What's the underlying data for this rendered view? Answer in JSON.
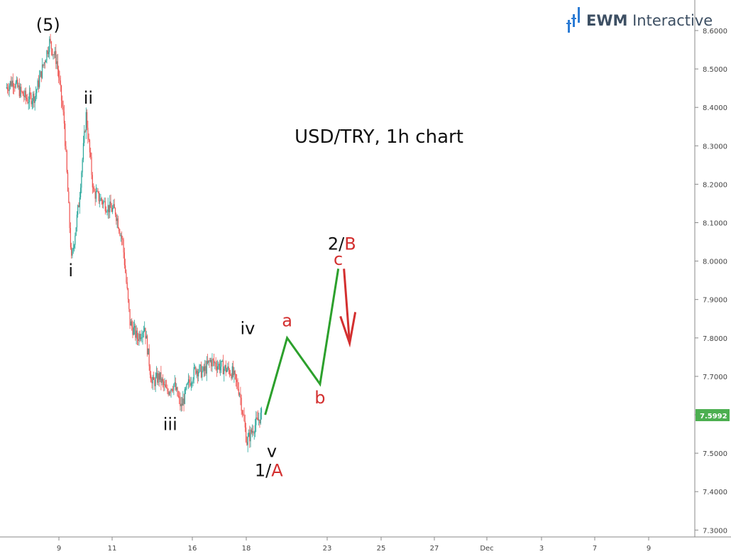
{
  "chart_data": {
    "type": "candlestick",
    "title": "USD/TRY, 1h chart",
    "ylim": [
      7.3,
      8.65
    ],
    "y_ticks": [
      "8.6000",
      "8.5000",
      "8.4000",
      "8.3000",
      "8.2000",
      "8.1000",
      "8.0000",
      "7.9000",
      "7.8000",
      "7.7000",
      "7.6000",
      "7.5000",
      "7.4000",
      "7.3000"
    ],
    "x_ticks": [
      "9",
      "11",
      "16",
      "18",
      "23",
      "25",
      "27",
      "Dec",
      "3",
      "7",
      "9"
    ],
    "current_price": "7.5992",
    "price_path": [
      {
        "t": 0,
        "v": 8.45
      },
      {
        "t": 1,
        "v": 8.47
      },
      {
        "t": 2,
        "v": 8.44
      },
      {
        "t": 3,
        "v": 8.42
      },
      {
        "t": 4,
        "v": 8.43
      },
      {
        "t": 5,
        "v": 8.5
      },
      {
        "t": 6,
        "v": 8.57
      },
      {
        "t": 7,
        "v": 8.52
      },
      {
        "t": 8,
        "v": 8.36
      },
      {
        "t": 9,
        "v": 8.0
      },
      {
        "t": 10,
        "v": 8.15
      },
      {
        "t": 11,
        "v": 8.38
      },
      {
        "t": 12,
        "v": 8.18
      },
      {
        "t": 13,
        "v": 8.16
      },
      {
        "t": 14,
        "v": 8.14
      },
      {
        "t": 15,
        "v": 8.13
      },
      {
        "t": 16,
        "v": 8.05
      },
      {
        "t": 17,
        "v": 7.84
      },
      {
        "t": 18,
        "v": 7.8
      },
      {
        "t": 19,
        "v": 7.83
      },
      {
        "t": 20,
        "v": 7.68
      },
      {
        "t": 21,
        "v": 7.7
      },
      {
        "t": 22,
        "v": 7.66
      },
      {
        "t": 23,
        "v": 7.68
      },
      {
        "t": 24,
        "v": 7.62
      },
      {
        "t": 25,
        "v": 7.68
      },
      {
        "t": 26,
        "v": 7.72
      },
      {
        "t": 27,
        "v": 7.71
      },
      {
        "t": 28,
        "v": 7.74
      },
      {
        "t": 29,
        "v": 7.73
      },
      {
        "t": 30,
        "v": 7.72
      },
      {
        "t": 31,
        "v": 7.71
      },
      {
        "t": 32,
        "v": 7.66
      },
      {
        "t": 33,
        "v": 7.53
      },
      {
        "t": 34,
        "v": 7.57
      },
      {
        "t": 35,
        "v": 7.6
      }
    ],
    "projection": [
      {
        "t": 35.5,
        "v": 7.6
      },
      {
        "t": 38.5,
        "v": 7.8
      },
      {
        "t": 43,
        "v": 7.68
      },
      {
        "t": 45.5,
        "v": 7.98
      }
    ],
    "wave_labels": [
      {
        "id": "wave-5",
        "text": "(5)",
        "t": 5.8,
        "v": 8.6,
        "color": "#111"
      },
      {
        "id": "wave-i",
        "text": "i",
        "t": 8.9,
        "v": 7.96,
        "color": "#111"
      },
      {
        "id": "wave-ii",
        "text": "ii",
        "t": 11.3,
        "v": 8.41,
        "color": "#111"
      },
      {
        "id": "wave-iii",
        "text": "iii",
        "t": 22.5,
        "v": 7.56,
        "color": "#111"
      },
      {
        "id": "wave-iv",
        "text": "iv",
        "t": 33.1,
        "v": 7.81,
        "color": "#111"
      },
      {
        "id": "wave-v",
        "text": "v",
        "t": 36.4,
        "v": 7.49,
        "color": "#111"
      },
      {
        "id": "wave-a",
        "text": "a",
        "t": 38.5,
        "v": 7.83,
        "color": "#d32f2f"
      },
      {
        "id": "wave-b",
        "text": "b",
        "t": 43,
        "v": 7.63,
        "color": "#d32f2f"
      },
      {
        "id": "wave-c",
        "text": "c",
        "t": 45.5,
        "v": 7.99,
        "color": "#d32f2f"
      }
    ],
    "compound_labels": [
      {
        "id": "wave-1a",
        "black": "1/",
        "red": "A",
        "t": 36,
        "v": 7.44
      },
      {
        "id": "wave-2b",
        "black": "2/",
        "red": "B",
        "t": 46,
        "v": 8.03
      }
    ]
  },
  "brand": {
    "name": "EWM",
    "suffix": " Interactive"
  },
  "colors": {
    "up": "#26a69a",
    "down": "#ef5350",
    "projection": "#2ca02c",
    "arrow": "#d32f2f",
    "red": "#d32f2f",
    "tag": "#4caf50"
  }
}
